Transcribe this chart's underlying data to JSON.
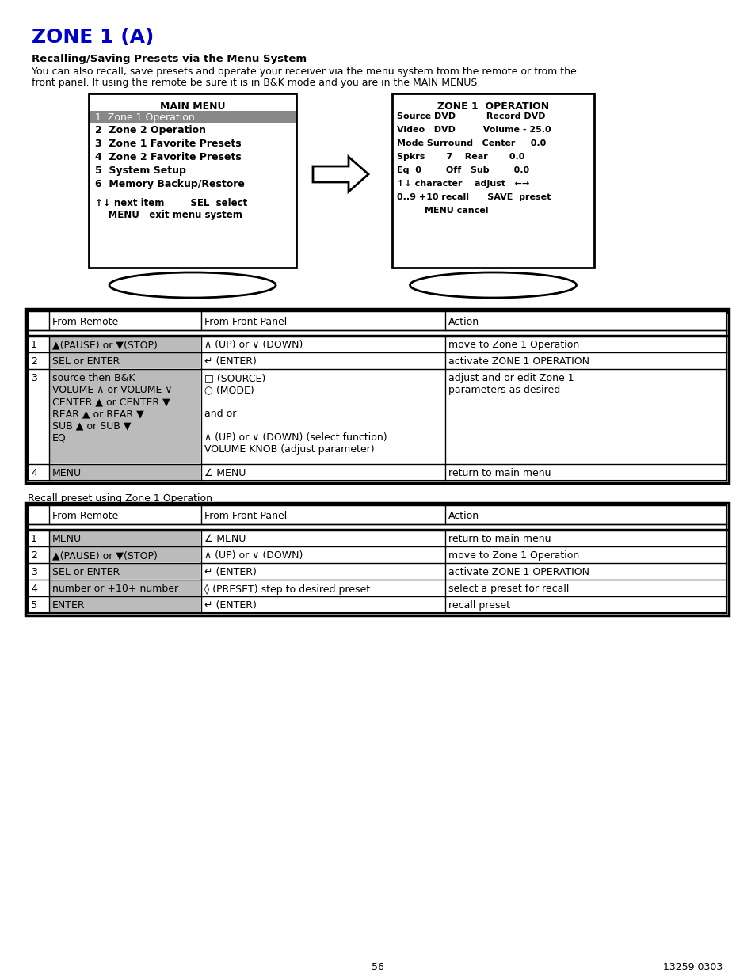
{
  "title": "ZONE 1 (A)",
  "title_color": "#0000CC",
  "section_heading": "Recalling/Saving Presets via the Menu System",
  "body_line1": "You can also recall, save presets and operate your receiver via the menu system from the remote or from the",
  "body_line2": "front panel. If using the remote be sure it is in B&K mode and you are in the MAIN MENUS.",
  "main_menu_title": "MAIN MENU",
  "main_menu_item0": "1  Zone 1 Operation",
  "main_menu_item1": "2  Zone 2 Operation",
  "main_menu_item2": "3  Zone 1 Favorite Presets",
  "main_menu_item3": "4  Zone 2 Favorite Presets",
  "main_menu_item4": "5  System Setup",
  "main_menu_item5": "6  Memory Backup/Restore",
  "main_menu_footer1": "↑↓ next item        SEL  select",
  "main_menu_footer2": "    MENU   exit menu system",
  "zone1_title": "ZONE 1  OPERATION",
  "zone1_line0": "Source DVD          Record DVD",
  "zone1_line1": "Video   DVD         Volume - 25.0",
  "zone1_line2": "Mode Surround   Center     0.0",
  "zone1_line3": "Spkrs       7    Rear       0.0",
  "zone1_line4": "Eq  0        Off   Sub        0.0",
  "zone1_line5": "↑↓ character    adjust   ←→",
  "zone1_line6": "0..9 +10 recall      SAVE  preset",
  "zone1_line7": "         MENU cancel",
  "t1_h0": "From Remote",
  "t1_h1": "From Front Panel",
  "t1_h2": "Action",
  "t1r1_num": "1",
  "t1r1_remote": "▲(PAUSE) or ▼(STOP)",
  "t1r1_panel": "∧ (UP) or ∨ (DOWN)",
  "t1r1_action": "move to Zone 1 Operation",
  "t1r2_num": "2",
  "t1r2_remote": "SEL or ENTER",
  "t1r2_panel": "↵ (ENTER)",
  "t1r2_action": "activate ZONE 1 OPERATION",
  "t1r3_num": "3",
  "t1r3_remote_lines": [
    "source then B&K",
    "VOLUME ∧ or VOLUME ∨",
    "CENTER ▲ or CENTER ▼",
    "REAR ▲ or REAR ▼",
    "SUB ▲ or SUB ▼",
    "EQ"
  ],
  "t1r3_panel_lines": [
    "□ (SOURCE)",
    "○ (MODE)",
    "",
    "and or",
    "",
    "∧ (UP) or ∨ (DOWN) (select function)",
    "VOLUME KNOB (adjust parameter)"
  ],
  "t1r3_action_lines": [
    "adjust and or edit Zone 1",
    "parameters as desired"
  ],
  "t1r4_num": "4",
  "t1r4_remote": "MENU",
  "t1r4_panel": "∠ MENU",
  "t1r4_action": "return to main menu",
  "recall_label": "Recall preset using Zone 1 Operation",
  "t2_h0": "From Remote",
  "t2_h1": "From Front Panel",
  "t2_h2": "Action",
  "t2r1_num": "1",
  "t2r1_remote": "MENU",
  "t2r1_panel": "∠ MENU",
  "t2r1_action": "return to main menu",
  "t2r2_num": "2",
  "t2r2_remote": "▲(PAUSE) or ▼(STOP)",
  "t2r2_panel": "∧ (UP) or ∨ (DOWN)",
  "t2r2_action": "move to Zone 1 Operation",
  "t2r3_num": "3",
  "t2r3_remote": "SEL or ENTER",
  "t2r3_panel": "↵ (ENTER)",
  "t2r3_action": "activate ZONE 1 OPERATION",
  "t2r4_num": "4",
  "t2r4_remote": "number or +10+ number",
  "t2r4_panel": "◊ (PRESET) step to desired preset",
  "t2r4_action": "select a preset for recall",
  "t2r5_num": "5",
  "t2r5_remote": "ENTER",
  "t2r5_panel": "↵ (ENTER)",
  "t2r5_action": "recall preset",
  "footer_page": "56",
  "footer_code": "13259 0303",
  "highlight_color": "#BBBBBB",
  "bg_color": "#FFFFFF"
}
